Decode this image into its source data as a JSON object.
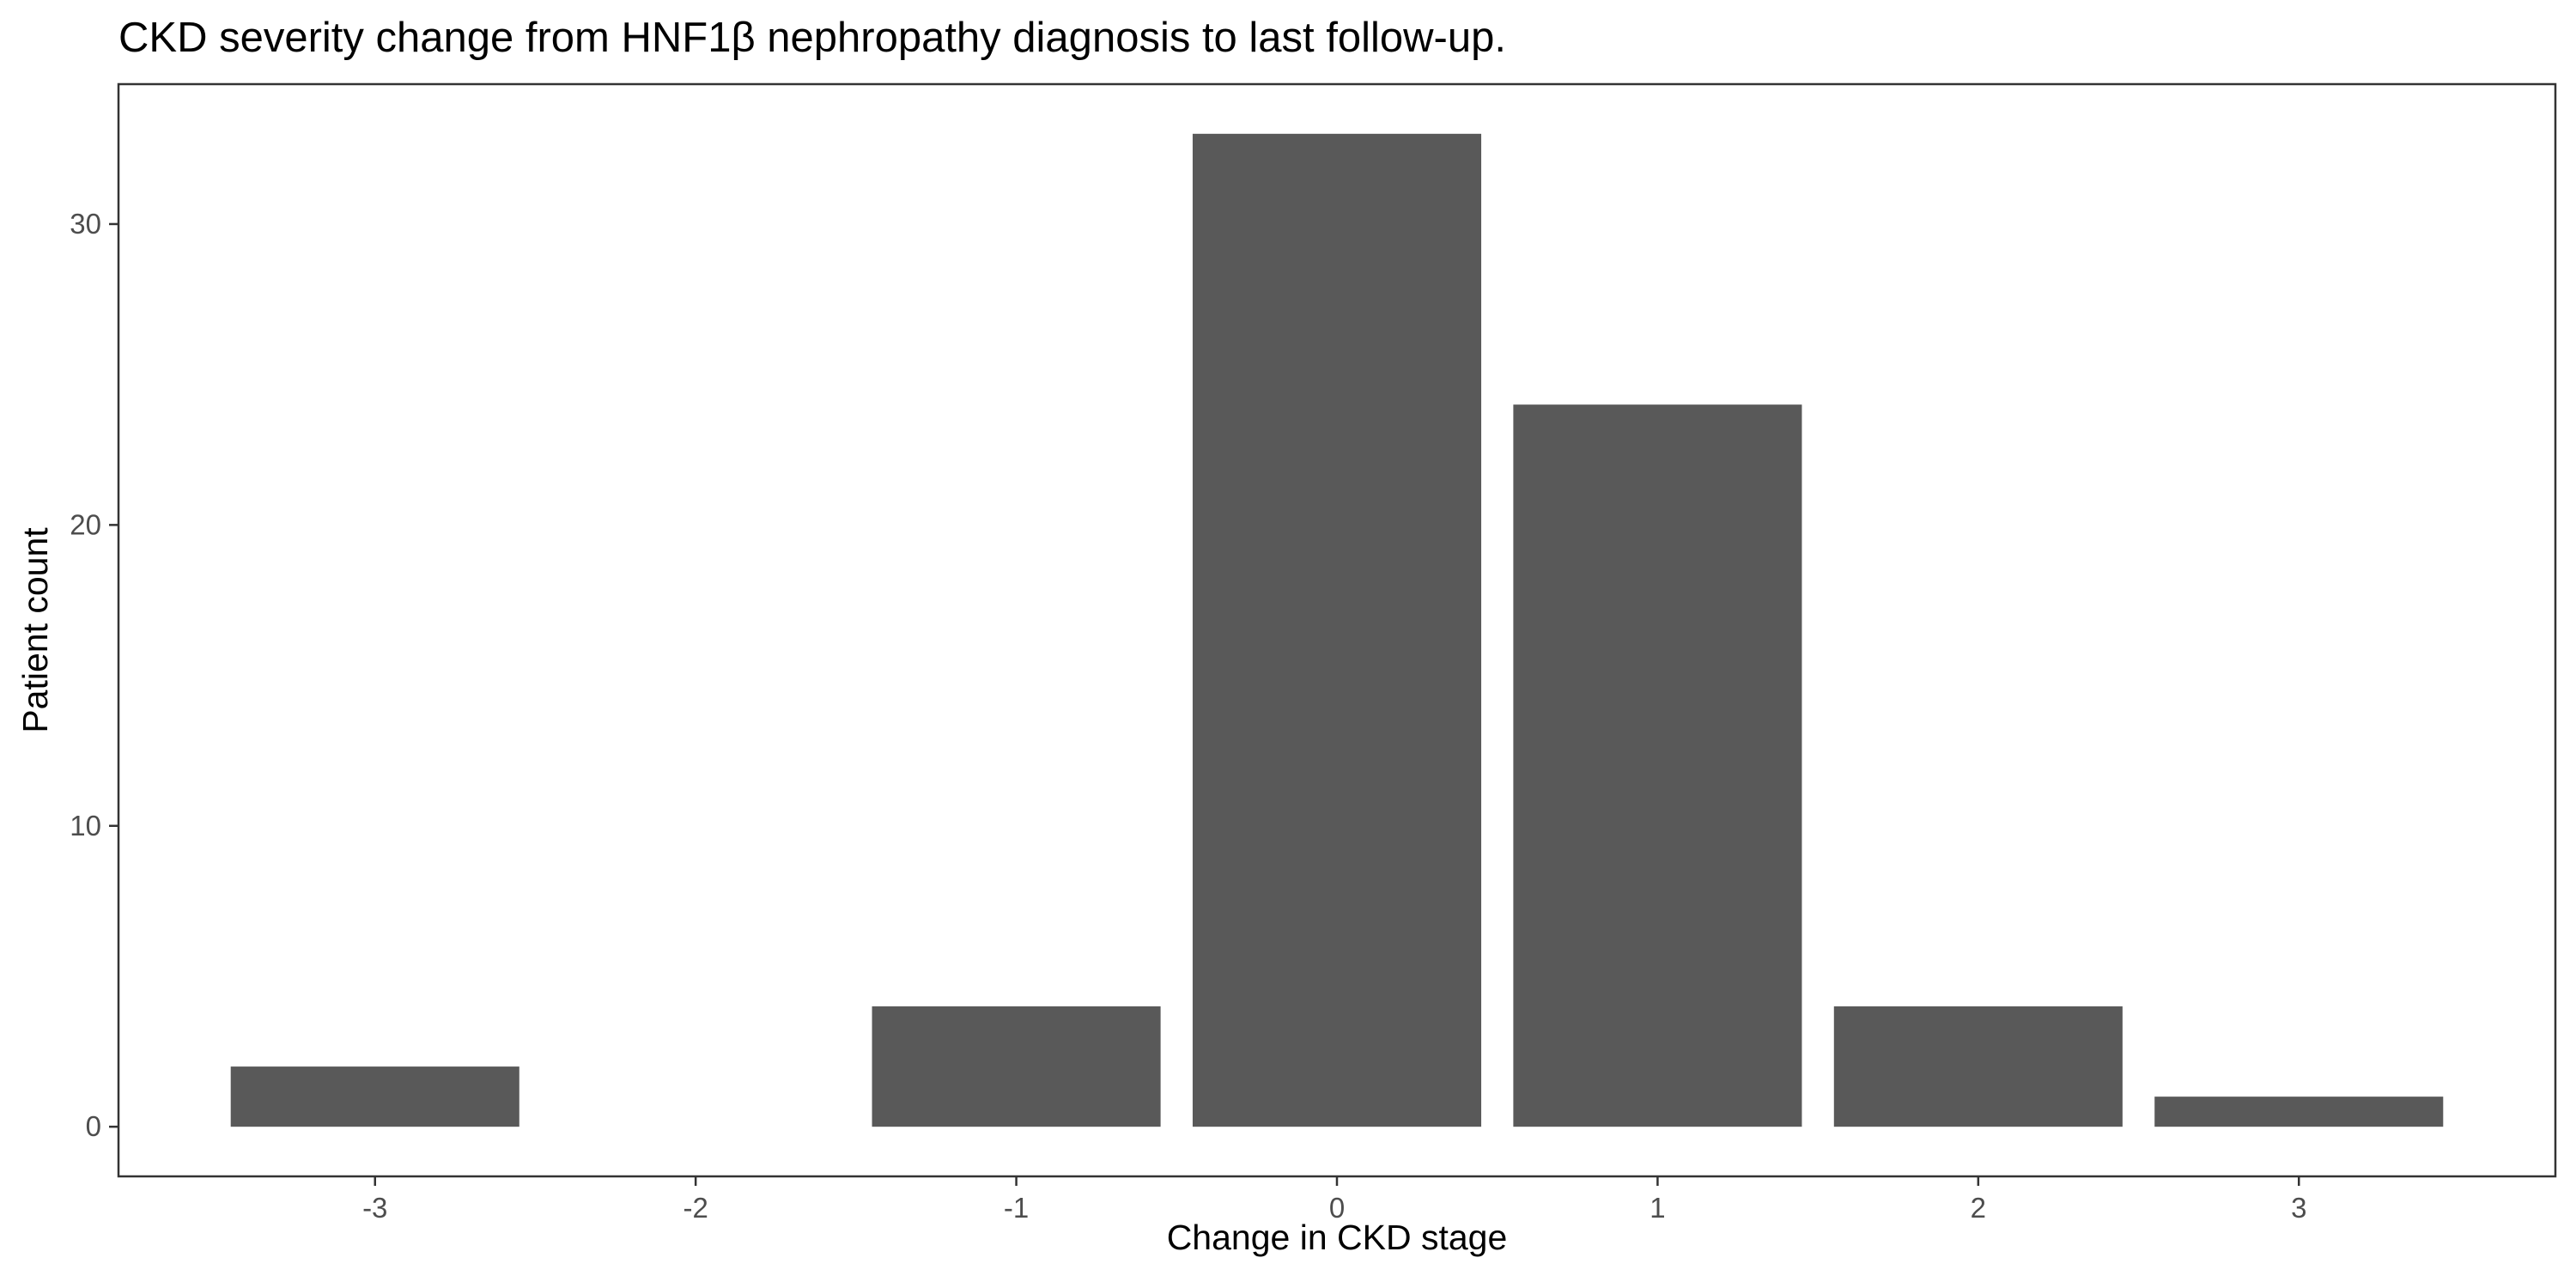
{
  "chart_data": {
    "type": "bar",
    "title": "CKD severity change from HNF1β nephropathy diagnosis to last follow-up.",
    "xlabel": "Change in CKD stage",
    "ylabel": "Patient count",
    "categories": [
      "-3",
      "-2",
      "-1",
      "0",
      "1",
      "2",
      "3"
    ],
    "x": [
      -3,
      -2,
      -1,
      0,
      1,
      2,
      3
    ],
    "values": [
      2,
      0,
      4,
      33,
      24,
      4,
      1
    ],
    "xlim": [
      -3.8,
      3.8
    ],
    "ylim": [
      -1.65,
      34.65
    ],
    "yticks": [
      0,
      10,
      20,
      30
    ],
    "grid": false,
    "legend": "none",
    "bar_color": "#595959"
  }
}
